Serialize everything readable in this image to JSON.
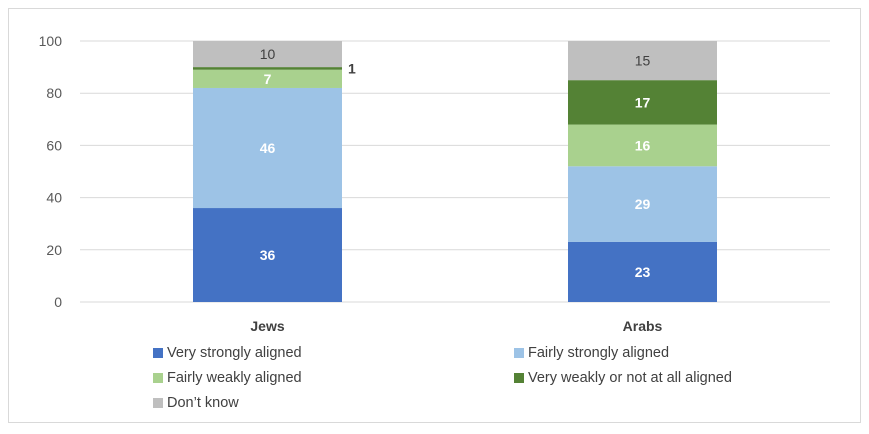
{
  "chart_data": {
    "type": "bar",
    "stacked": true,
    "categories": [
      "Jews",
      "Arabs"
    ],
    "series": [
      {
        "name": "Very strongly aligned",
        "color": "#4472C4",
        "values": [
          36,
          23
        ],
        "label_color": "#ffffff"
      },
      {
        "name": "Fairly strongly aligned",
        "color": "#9DC3E6",
        "values": [
          46,
          29
        ],
        "label_color": "#ffffff"
      },
      {
        "name": "Fairly weakly aligned",
        "color": "#A9D18E",
        "values": [
          7,
          16
        ],
        "label_color": "#ffffff"
      },
      {
        "name": "Very weakly or not at all aligned",
        "color": "#548235",
        "values": [
          1,
          17
        ],
        "label_color": "#ffffff"
      },
      {
        "name": "Don’t know",
        "color": "#BFBFBF",
        "values": [
          10,
          15
        ],
        "label_color": "#404040"
      }
    ],
    "ylim": [
      0,
      100
    ],
    "yticks": [
      0,
      20,
      40,
      60,
      80,
      100
    ],
    "grid": true,
    "legend_position": "bottom",
    "title": "",
    "xlabel": "",
    "ylabel": ""
  }
}
